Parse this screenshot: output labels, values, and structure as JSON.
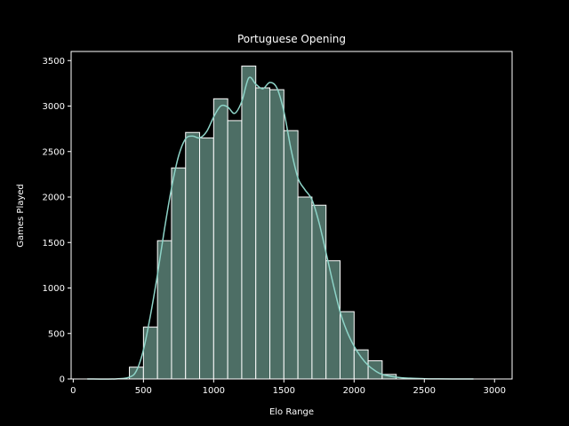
{
  "colors": {
    "background": "#000000",
    "bar_fill": "#4d6e65",
    "bar_edge": "#ffffff",
    "kde_line": "#8dd3c7",
    "axis": "#ffffff",
    "text": "#ffffff"
  },
  "chart_data": {
    "type": "bar",
    "subtype": "histogram-with-kde",
    "title": "Portuguese Opening",
    "xlabel": "Elo Range",
    "ylabel": "Games Played",
    "xlim": [
      -15,
      3125
    ],
    "ylim": [
      0,
      3600
    ],
    "xticks": [
      0,
      500,
      1000,
      1500,
      2000,
      2500,
      3000
    ],
    "yticks": [
      0,
      500,
      1000,
      1500,
      2000,
      2500,
      3000,
      3500
    ],
    "grid": false,
    "legend": "none",
    "bin_width": 100,
    "bins": [
      {
        "start": 400,
        "end": 500,
        "count": 130
      },
      {
        "start": 500,
        "end": 600,
        "count": 570
      },
      {
        "start": 600,
        "end": 700,
        "count": 1520
      },
      {
        "start": 700,
        "end": 800,
        "count": 2320
      },
      {
        "start": 800,
        "end": 900,
        "count": 2710
      },
      {
        "start": 900,
        "end": 1000,
        "count": 2650
      },
      {
        "start": 1000,
        "end": 1100,
        "count": 3080
      },
      {
        "start": 1100,
        "end": 1200,
        "count": 2840
      },
      {
        "start": 1200,
        "end": 1300,
        "count": 3440
      },
      {
        "start": 1300,
        "end": 1400,
        "count": 3200
      },
      {
        "start": 1400,
        "end": 1500,
        "count": 3180
      },
      {
        "start": 1500,
        "end": 1600,
        "count": 2730
      },
      {
        "start": 1600,
        "end": 1700,
        "count": 2000
      },
      {
        "start": 1700,
        "end": 1800,
        "count": 1910
      },
      {
        "start": 1800,
        "end": 1900,
        "count": 1300
      },
      {
        "start": 1900,
        "end": 2000,
        "count": 740
      },
      {
        "start": 2000,
        "end": 2100,
        "count": 320
      },
      {
        "start": 2100,
        "end": 2200,
        "count": 200
      },
      {
        "start": 2200,
        "end": 2300,
        "count": 50
      }
    ],
    "kde": {
      "x": [
        100,
        300,
        400,
        450,
        500,
        550,
        600,
        650,
        700,
        750,
        800,
        850,
        900,
        950,
        1000,
        1050,
        1100,
        1150,
        1200,
        1250,
        1300,
        1350,
        1400,
        1450,
        1500,
        1550,
        1600,
        1650,
        1700,
        1750,
        1800,
        1850,
        1900,
        1950,
        2000,
        2050,
        2100,
        2150,
        2200,
        2300,
        2400,
        2500,
        2600,
        2700,
        2800,
        2850
      ],
      "y": [
        0,
        0,
        20,
        90,
        320,
        700,
        1150,
        1650,
        2100,
        2450,
        2640,
        2670,
        2650,
        2720,
        2880,
        3000,
        2990,
        2920,
        3050,
        3310,
        3240,
        3190,
        3260,
        3200,
        2940,
        2530,
        2210,
        2080,
        1970,
        1720,
        1390,
        1050,
        740,
        520,
        360,
        240,
        150,
        90,
        50,
        20,
        8,
        3,
        1,
        0,
        0,
        0
      ]
    }
  }
}
